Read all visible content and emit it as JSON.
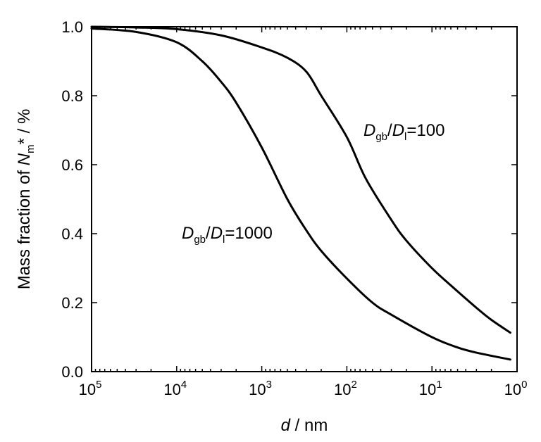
{
  "chart_data": {
    "type": "line",
    "x_scale": "log",
    "x_reversed": true,
    "xlim": [
      100000,
      1
    ],
    "ylim": [
      0.0,
      1.0
    ],
    "grid": false,
    "legend": "none",
    "xlabel": {
      "italic": "d",
      "rest": " / nm"
    },
    "ylabel": {
      "pre": "Mass fraction of ",
      "italic": "N",
      "sub": "m",
      "post": "* / %"
    },
    "x_ticks": [
      {
        "value": 100000,
        "base": "10",
        "exp": "5"
      },
      {
        "value": 10000,
        "base": "10",
        "exp": "4"
      },
      {
        "value": 1000,
        "base": "10",
        "exp": "3"
      },
      {
        "value": 100,
        "base": "10",
        "exp": "2"
      },
      {
        "value": 10,
        "base": "10",
        "exp": "1"
      },
      {
        "value": 1,
        "base": "10",
        "exp": "0"
      }
    ],
    "y_ticks": [
      "0.0",
      "0.2",
      "0.4",
      "0.6",
      "0.8",
      "1.0"
    ],
    "series": [
      {
        "name": "Dgb/Dl=100",
        "label": {
          "D1": "D",
          "sub1": "gb",
          "slash": "/",
          "D2": "D",
          "sub2": "l",
          "rest": "=100"
        },
        "x": [
          100000,
          30000,
          10000,
          3000,
          1000,
          500,
          300,
          200,
          100,
          60,
          30,
          20,
          10,
          6,
          3,
          2,
          1.2
        ],
        "y": [
          1.0,
          0.998,
          0.993,
          0.975,
          0.94,
          0.91,
          0.87,
          0.8,
          0.68,
          0.56,
          0.44,
          0.38,
          0.3,
          0.25,
          0.185,
          0.15,
          0.113
        ]
      },
      {
        "name": "Dgb/Dl=1000",
        "label": {
          "D1": "D",
          "sub1": "gb",
          "slash": "/",
          "D2": "D",
          "sub2": "l",
          "rest": "=1000"
        },
        "x": [
          100000,
          30000,
          10000,
          5000,
          3000,
          2000,
          1000,
          500,
          300,
          200,
          100,
          50,
          30,
          10,
          5,
          3,
          1.2
        ],
        "y": [
          0.995,
          0.985,
          0.955,
          0.9,
          0.84,
          0.78,
          0.65,
          0.5,
          0.41,
          0.35,
          0.27,
          0.2,
          0.165,
          0.1,
          0.07,
          0.055,
          0.035
        ]
      }
    ]
  }
}
